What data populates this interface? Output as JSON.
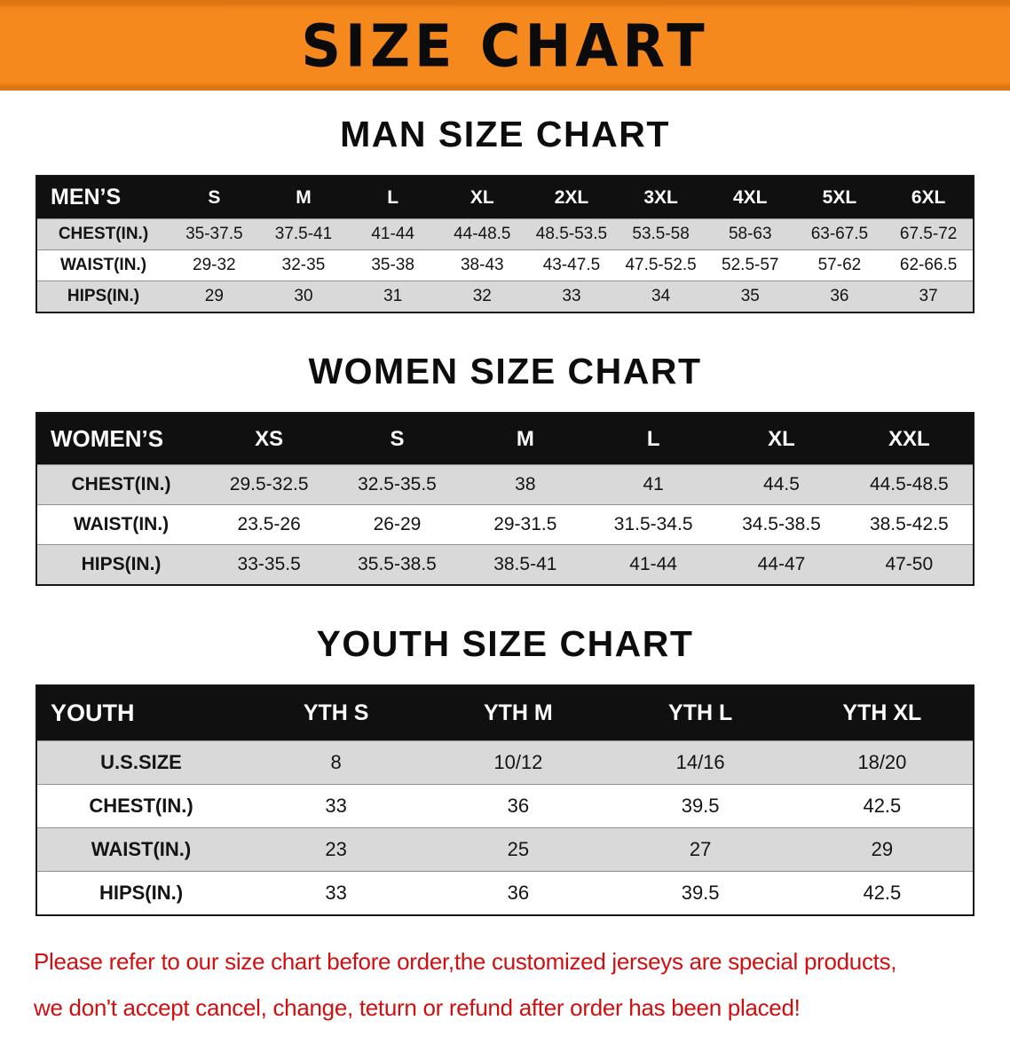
{
  "banner": {
    "title": "SIZE CHART"
  },
  "colors": {
    "banner_bg": "#F5891D",
    "header_bg": "#101010",
    "row_alt_bg": "#D9D9D9",
    "disclaimer_red": "#D01010"
  },
  "sections": [
    {
      "id": "men",
      "heading": "MAN SIZE CHART",
      "table": {
        "header": [
          "MEN’S",
          "S",
          "M",
          "L",
          "XL",
          "2XL",
          "3XL",
          "4XL",
          "5XL",
          "6XL"
        ],
        "rows": [
          [
            "CHEST(IN.)",
            "35-37.5",
            "37.5-41",
            "41-44",
            "44-48.5",
            "48.5-53.5",
            "53.5-58",
            "58-63",
            "63-67.5",
            "67.5-72"
          ],
          [
            "WAIST(IN.)",
            "29-32",
            "32-35",
            "35-38",
            "38-43",
            "43-47.5",
            "47.5-52.5",
            "52.5-57",
            "57-62",
            "62-66.5"
          ],
          [
            "HIPS(IN.)",
            "29",
            "30",
            "31",
            "32",
            "33",
            "34",
            "35",
            "36",
            "37"
          ]
        ]
      }
    },
    {
      "id": "women",
      "heading": "WOMEN SIZE CHART",
      "table": {
        "header": [
          "WOMEN’S",
          "XS",
          "S",
          "M",
          "L",
          "XL",
          "XXL"
        ],
        "rows": [
          [
            "CHEST(IN.)",
            "29.5-32.5",
            "32.5-35.5",
            "38",
            "41",
            "44.5",
            "44.5-48.5"
          ],
          [
            "WAIST(IN.)",
            "23.5-26",
            "26-29",
            "29-31.5",
            "31.5-34.5",
            "34.5-38.5",
            "38.5-42.5"
          ],
          [
            "HIPS(IN.)",
            "33-35.5",
            "35.5-38.5",
            "38.5-41",
            "41-44",
            "44-47",
            "47-50"
          ]
        ]
      }
    },
    {
      "id": "youth",
      "heading": "YOUTH SIZE CHART",
      "table": {
        "header": [
          "YOUTH",
          "YTH S",
          "YTH M",
          "YTH L",
          "YTH XL"
        ],
        "rows": [
          [
            "U.S.SIZE",
            "8",
            "10/12",
            "14/16",
            "18/20"
          ],
          [
            "CHEST(IN.)",
            "33",
            "36",
            "39.5",
            "42.5"
          ],
          [
            "WAIST(IN.)",
            "23",
            "25",
            "27",
            "29"
          ],
          [
            "HIPS(IN.)",
            "33",
            "36",
            "39.5",
            "42.5"
          ]
        ]
      }
    }
  ],
  "disclaimer": {
    "line1": "Please refer to our size chart before order,the customized jerseys are special products,",
    "line2": "we don't accept cancel, change, teturn or refund after order has been placed!"
  }
}
